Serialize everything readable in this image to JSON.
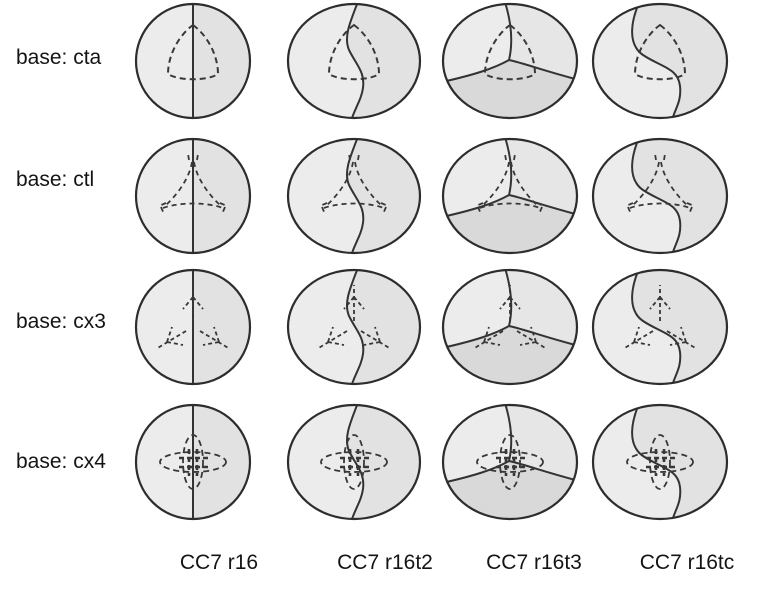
{
  "figure": {
    "rows": [
      {
        "label": "base: cta",
        "base": "cta"
      },
      {
        "label": "base: ctl",
        "base": "ctl"
      },
      {
        "label": "base: cx3",
        "base": "cx3"
      },
      {
        "label": "base: cx4",
        "base": "cx4"
      }
    ],
    "columns": [
      {
        "label": "CC7 r16",
        "variant": "r16"
      },
      {
        "label": "CC7 r16t2",
        "variant": "r16t2"
      },
      {
        "label": "CC7 r16t3",
        "variant": "r16t3"
      },
      {
        "label": "CC7 r16tc",
        "variant": "r16tc"
      }
    ],
    "colors": {
      "outline": "#2d2d2d",
      "solid": "#333333",
      "dashed": "#383838",
      "fill_light": "#ececec",
      "fill_mid": "#e6e6e6",
      "fill_dark": "#e2e2e2",
      "fill_darkest": "#d9d9d9"
    }
  }
}
